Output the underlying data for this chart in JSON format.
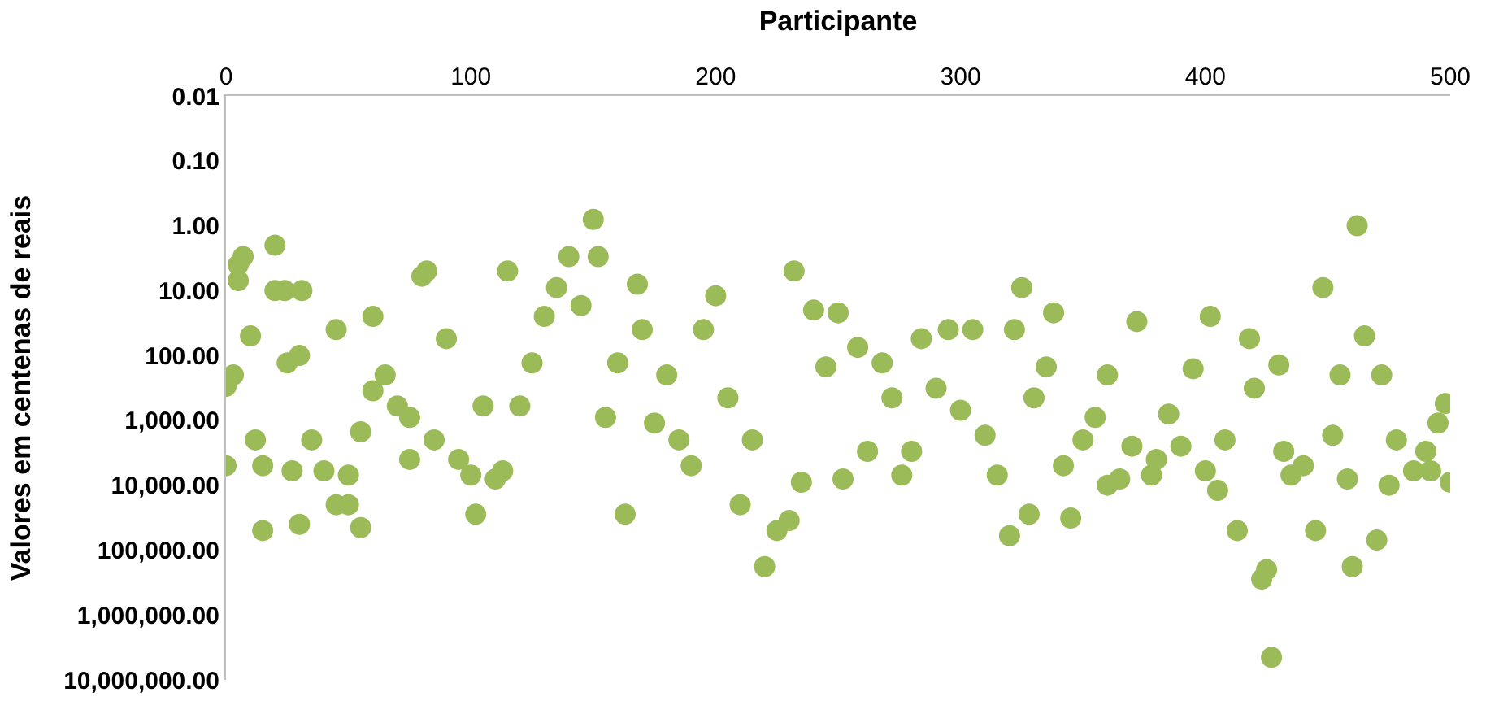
{
  "chart_data": {
    "type": "scatter",
    "xlabel": "Participante",
    "ylabel": "Valores em centenas de reais",
    "x": [
      0,
      0,
      3,
      5,
      5,
      7,
      10,
      12,
      15,
      15,
      20,
      20,
      24,
      31,
      25,
      27,
      30,
      30,
      35,
      40,
      45,
      45,
      50,
      50,
      55,
      55,
      60,
      60,
      65,
      70,
      75,
      75,
      80,
      82,
      85,
      90,
      95,
      100,
      102,
      105,
      110,
      113,
      115,
      120,
      125,
      130,
      135,
      140,
      145,
      150,
      152,
      155,
      160,
      163,
      168,
      170,
      175,
      180,
      185,
      190,
      195,
      200,
      205,
      210,
      215,
      220,
      225,
      230,
      232,
      235,
      240,
      245,
      250,
      252,
      258,
      262,
      268,
      272,
      276,
      280,
      284,
      290,
      295,
      300,
      305,
      310,
      315,
      320,
      322,
      325,
      328,
      330,
      335,
      338,
      342,
      345,
      350,
      355,
      360,
      360,
      365,
      370,
      372,
      378,
      380,
      385,
      390,
      395,
      400,
      402,
      405,
      408,
      413,
      418,
      420,
      423,
      425,
      427,
      430,
      432,
      435,
      440,
      445,
      448,
      452,
      455,
      458,
      460,
      462,
      465,
      470,
      472,
      475,
      478,
      485,
      490,
      492,
      495,
      498,
      500
    ],
    "values": [
      5000,
      300,
      200,
      7,
      4,
      3,
      50,
      2000,
      5000,
      50000,
      2,
      10,
      10,
      10,
      130,
      6000,
      100,
      40000,
      2000,
      6000,
      40,
      20000,
      20000,
      7000,
      1500,
      45000,
      350,
      25,
      200,
      600,
      4000,
      900,
      6,
      5,
      2000,
      55,
      4000,
      7000,
      28000,
      600,
      8000,
      6000,
      5,
      600,
      130,
      25,
      9,
      3,
      17,
      0.8,
      3,
      900,
      130,
      28000,
      8,
      40,
      1100,
      200,
      2000,
      5000,
      40,
      12,
      450,
      20000,
      2000,
      180000,
      50000,
      35000,
      5,
      9000,
      20,
      150,
      22,
      8000,
      75,
      3000,
      130,
      450,
      7000,
      3000,
      55,
      320,
      40,
      700,
      40,
      1700,
      7000,
      60000,
      40,
      9,
      28000,
      450,
      150,
      22,
      5000,
      32000,
      2000,
      900,
      200,
      10000,
      8000,
      2500,
      30,
      7000,
      4000,
      800,
      2500,
      160,
      6000,
      25,
      12000,
      2000,
      50000,
      55,
      320,
      280000,
      200000,
      4500000,
      140,
      3000,
      7000,
      5000,
      50000,
      9,
      1700,
      200,
      8000,
      180000,
      1,
      50,
      70000,
      200,
      10000,
      2000,
      6000,
      3000,
      6000,
      1100,
      550,
      9000
    ],
    "color": "#9bbb59",
    "marker": "circle",
    "log": "y",
    "xlim": [
      0,
      500
    ],
    "xticks": [
      0,
      100,
      200,
      300,
      400,
      500
    ],
    "ylim": [
      10000000,
      0.01
    ],
    "yticks": [
      {
        "value": 0.01,
        "label": "0.01"
      },
      {
        "value": 0.1,
        "label": "0.10"
      },
      {
        "value": 1,
        "label": "1.00"
      },
      {
        "value": 10,
        "label": "10.00"
      },
      {
        "value": 100,
        "label": "100.00"
      },
      {
        "value": 1000,
        "label": "1,000.00"
      },
      {
        "value": 10000,
        "label": "10,000.00"
      },
      {
        "value": 100000,
        "label": "100,000.00"
      },
      {
        "value": 1000000,
        "label": "1,000,000.00"
      },
      {
        "value": 10000000,
        "label": "10,000,000.00"
      }
    ]
  }
}
